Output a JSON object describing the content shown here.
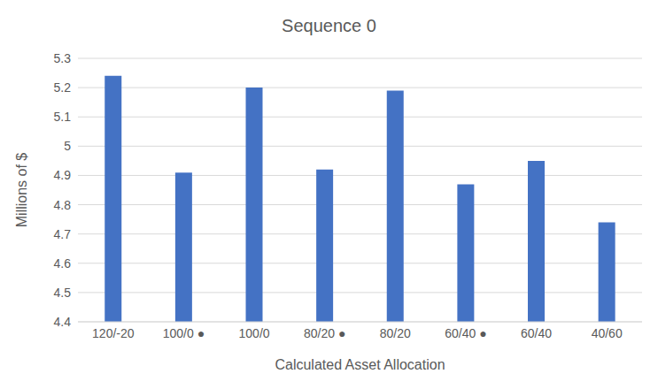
{
  "chart_data": {
    "type": "bar",
    "title": "Sequence 0",
    "x_label": "Calculated Asset Allocation",
    "y_label": "Millions of $",
    "categories": [
      "120/-20",
      "100/0 ●",
      "100/0",
      "80/20 ●",
      "80/20",
      "60/40 ●",
      "60/40",
      "40/60"
    ],
    "values": [
      5.24,
      4.91,
      5.2,
      4.92,
      5.19,
      4.87,
      4.95,
      4.74
    ],
    "color": "#4472c4",
    "ylim": [
      4.4,
      5.3
    ],
    "yticks": [
      4.4,
      4.5,
      4.6,
      4.7,
      4.8,
      4.9,
      5,
      5.1,
      5.2,
      5.3
    ],
    "grid": true
  }
}
